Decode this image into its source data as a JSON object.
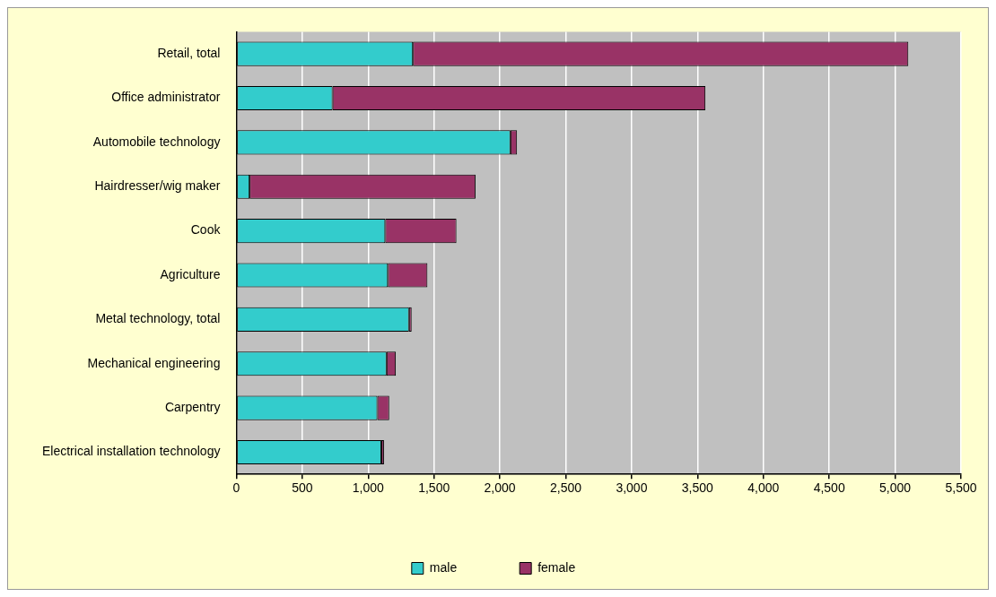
{
  "chart_data": {
    "type": "bar",
    "orientation": "horizontal",
    "stacked": true,
    "categories": [
      "Retail, total",
      "Office administrator",
      "Automobile technology",
      "Hairdresser/wig maker",
      "Cook",
      "Agriculture",
      "Metal technology, total",
      "Mechanical engineering",
      "Carpentry",
      "Electrical installation technology"
    ],
    "series": [
      {
        "name": "male",
        "color": "#33cccc",
        "values": [
          1340,
          730,
          2080,
          100,
          1130,
          1150,
          1310,
          1140,
          1070,
          1100
        ]
      },
      {
        "name": "female",
        "color": "#993366",
        "values": [
          3760,
          2830,
          50,
          1715,
          540,
          300,
          20,
          70,
          90,
          20
        ]
      }
    ],
    "xlim": [
      0,
      5500
    ],
    "xticks": [
      0,
      500,
      {
        "value": 1000,
        "label": "1,000"
      },
      {
        "value": 1500,
        "label": "1,500"
      },
      {
        "value": 2000,
        "label": "2,000"
      },
      {
        "value": 2500,
        "label": "2,500"
      },
      {
        "value": 3000,
        "label": "3,000"
      },
      {
        "value": 3500,
        "label": "3,500"
      },
      {
        "value": 4000,
        "label": "4,000"
      },
      {
        "value": 4500,
        "label": "4,500"
      },
      {
        "value": 5000,
        "label": "5,000"
      },
      {
        "value": 5500,
        "label": "5,500"
      }
    ],
    "grid": "x",
    "legend": "bottom"
  }
}
